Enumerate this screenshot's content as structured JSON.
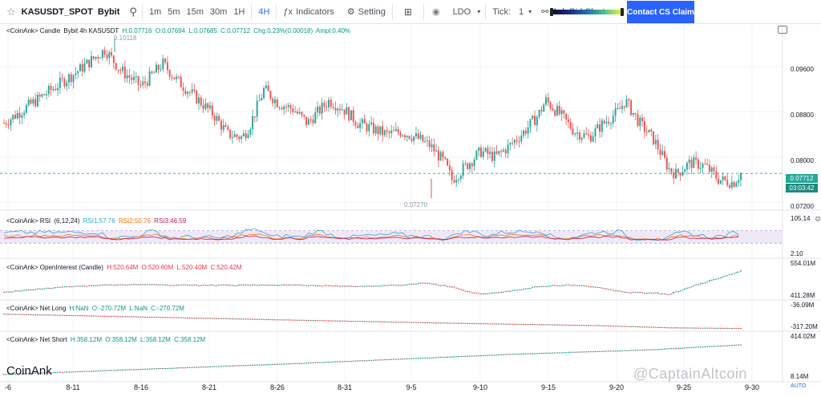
{
  "toolbar": {
    "symbol": "KASUSDT_SPOT",
    "exchange": "Bybit",
    "timeframes": [
      "1m",
      "5m",
      "15m",
      "30m",
      "1H",
      "4H"
    ],
    "active_timeframe": "4H",
    "indicators_label": "Indicators",
    "setting_label": "Setting",
    "coin_select": "LDO",
    "tick_label": "Tick:",
    "tick_value": "1",
    "cluster_label": "Ask-Bid Cluster",
    "contact_label": "Contact CS Claim"
  },
  "legends": {
    "candle": {
      "prefix": "<CoinAnk> Candle",
      "symbol": "Bybit 4h KASUSDT",
      "h": "H:0.07716",
      "o": "O:0.07694",
      "l": "L:0.07685",
      "c": "C:0.07712",
      "chg": "Chg:0.23%(0.00018)",
      "ampl": "Ampl:0.40%"
    },
    "rsi": {
      "prefix": "<CoinAnk> RSI",
      "params": "(6,12,24)",
      "rsi1": "RSI1:57.76",
      "rsi2": "RSI2:50.76",
      "rsi3": "RSI3:46.59"
    },
    "oi": {
      "prefix": "<CoinAnk> OpenInterest (Candle)",
      "h": "H:520.64M",
      "o": "O:520.60M",
      "l": "L:520.40M",
      "c": "C:520.42M"
    },
    "net_long": {
      "prefix": "<CoinAnk> Net Long",
      "h": "H:NaN",
      "o": "O:-270.72M",
      "l": "L:NaN",
      "c": "C:-270.72M"
    },
    "net_short": {
      "prefix": "<CoinAnk> Net Short",
      "h": "H:358.12M",
      "o": "O:358.12M",
      "l": "L:358.12M",
      "c": "C:358.12M"
    }
  },
  "axes": {
    "price_ticks": [
      "0.09600",
      "0.08800",
      "0.08000",
      "0.07200"
    ],
    "current_price": "0.07712",
    "countdown": "03:03:42",
    "rsi_ticks": [
      "105.14",
      "2.10"
    ],
    "oi_ticks": [
      "554.01M",
      "411.28M"
    ],
    "net_long_ticks": [
      "-36.09M",
      "-317.20M"
    ],
    "net_short_ticks": [
      "414.02M",
      "8.14M"
    ],
    "x_labels": [
      "-6",
      "8-11",
      "8-16",
      "8-21",
      "8-26",
      "8-31",
      "9-5",
      "9-10",
      "9-15",
      "9-20",
      "9-25",
      "9-30"
    ],
    "auto_label": "AUTO"
  },
  "annotations": {
    "high_marker": "0.10118",
    "low_marker": "0.07270"
  },
  "branding": {
    "logo": "CoinAnk",
    "watermark": "@CaptainAltcoin"
  },
  "colors": {
    "up": "#26a69a",
    "down": "#ef5350",
    "accent": "#2962ff",
    "rsi1": "#2ba6de",
    "rsi2": "#ff6d00",
    "rsi3": "#c2185b"
  },
  "chart_data": {
    "type": "candlestick",
    "interval": "4h",
    "x_range": [
      "8-6",
      "9-30"
    ],
    "price_ylim": [
      0.0712,
      0.1035
    ],
    "price_path": [
      [
        0,
        0.086
      ],
      [
        5,
        0.0905
      ],
      [
        10,
        0.095
      ],
      [
        14,
        0.099
      ],
      [
        16,
        0.0955
      ],
      [
        19,
        0.0925
      ],
      [
        22,
        0.0965
      ],
      [
        24,
        0.0935
      ],
      [
        27,
        0.09
      ],
      [
        29,
        0.0875
      ],
      [
        31,
        0.084
      ],
      [
        33,
        0.0835
      ],
      [
        34,
        0.0855
      ],
      [
        36,
        0.092
      ],
      [
        38,
        0.0895
      ],
      [
        40,
        0.0885
      ],
      [
        42,
        0.086
      ],
      [
        45,
        0.09
      ],
      [
        47,
        0.0885
      ],
      [
        49,
        0.086
      ],
      [
        51,
        0.085
      ],
      [
        53,
        0.084
      ],
      [
        55,
        0.0845
      ],
      [
        57,
        0.0835
      ],
      [
        59,
        0.082
      ],
      [
        61,
        0.079
      ],
      [
        62,
        0.076
      ],
      [
        64,
        0.0785
      ],
      [
        66,
        0.081
      ],
      [
        68,
        0.08
      ],
      [
        70,
        0.082
      ],
      [
        72,
        0.0845
      ],
      [
        74,
        0.0875
      ],
      [
        75,
        0.09
      ],
      [
        77,
        0.0875
      ],
      [
        79,
        0.0845
      ],
      [
        81,
        0.0835
      ],
      [
        83,
        0.086
      ],
      [
        85,
        0.088
      ],
      [
        86,
        0.09
      ],
      [
        88,
        0.086
      ],
      [
        90,
        0.083
      ],
      [
        92,
        0.078
      ],
      [
        93,
        0.077
      ],
      [
        95,
        0.079
      ],
      [
        97,
        0.0785
      ],
      [
        99,
        0.076
      ],
      [
        101,
        0.0755
      ],
      [
        102,
        0.07712
      ]
    ],
    "series": [
      {
        "name": "RSI1",
        "mean": 57.76
      },
      {
        "name": "RSI2",
        "mean": 50.76
      },
      {
        "name": "RSI3",
        "mean": 46.59
      }
    ],
    "open_interest_path": [
      [
        0,
        455
      ],
      [
        8,
        470
      ],
      [
        16,
        478
      ],
      [
        24,
        476
      ],
      [
        30,
        476
      ],
      [
        40,
        476
      ],
      [
        50,
        472
      ],
      [
        56,
        478
      ],
      [
        58,
        484
      ],
      [
        62,
        470
      ],
      [
        64,
        456
      ],
      [
        66,
        448
      ],
      [
        70,
        458
      ],
      [
        74,
        472
      ],
      [
        78,
        477
      ],
      [
        82,
        470
      ],
      [
        84,
        461
      ],
      [
        86,
        454
      ],
      [
        90,
        452
      ],
      [
        92,
        448
      ],
      [
        96,
        478
      ],
      [
        100,
        504
      ],
      [
        102,
        520.42
      ]
    ],
    "net_long_path": [
      [
        0,
        -92
      ],
      [
        40,
        -166
      ],
      [
        62,
        -205
      ],
      [
        82,
        -234
      ],
      [
        92,
        -262
      ],
      [
        102,
        -270.72
      ]
    ],
    "net_short_path": [
      [
        0,
        60
      ],
      [
        40,
        168
      ],
      [
        70,
        262
      ],
      [
        90,
        310
      ],
      [
        102,
        358.12
      ]
    ]
  }
}
